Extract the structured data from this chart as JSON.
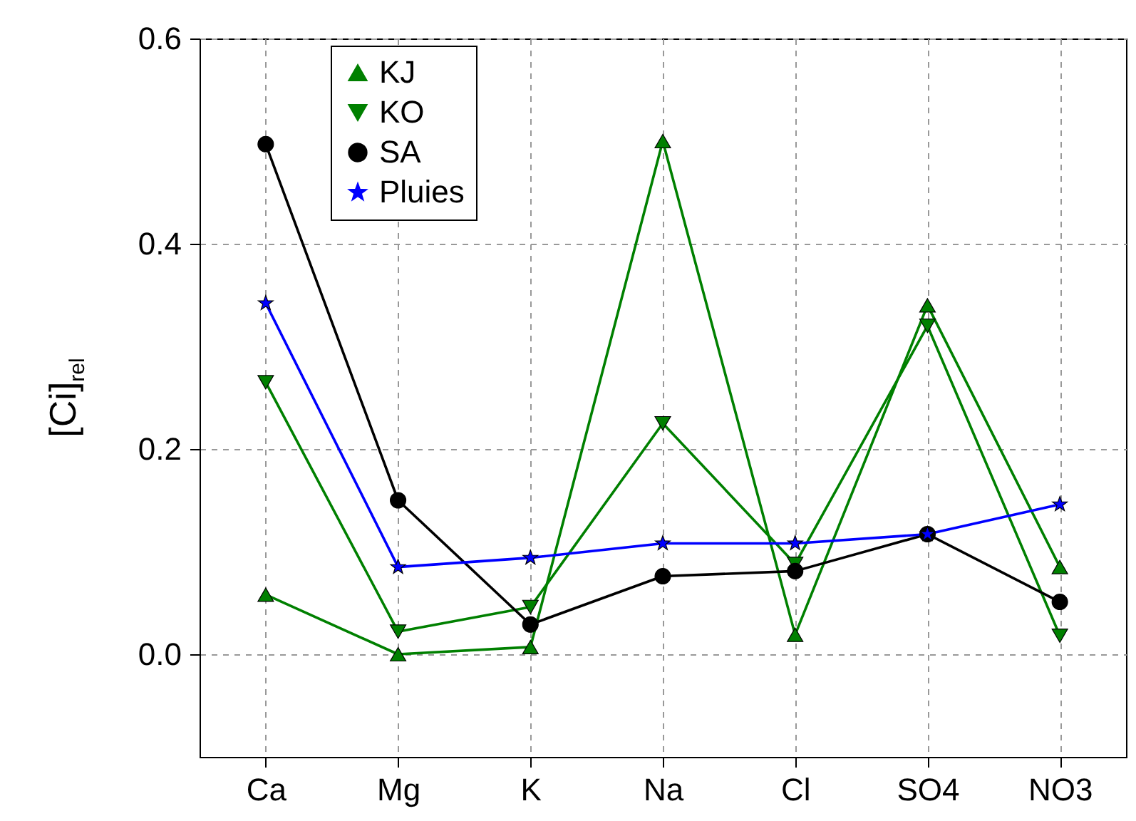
{
  "chart_data": {
    "type": "line",
    "ylabel": "[Ci]$_{rel}$",
    "categories": [
      "Ca",
      "Mg",
      "K",
      "Na",
      "Cl",
      "SO4",
      "NO3"
    ],
    "series": [
      {
        "name": "KJ",
        "color": "#008000",
        "marker": "triangle",
        "values": [
          0.058,
          0.0,
          0.007,
          0.5,
          0.019,
          0.34,
          0.085
        ]
      },
      {
        "name": "KO",
        "color": "#008000",
        "marker": "triangle-down",
        "values": [
          0.265,
          0.022,
          0.046,
          0.225,
          0.088,
          0.32,
          0.018
        ]
      },
      {
        "name": "SA",
        "color": "#000000",
        "marker": "circle",
        "values": [
          0.497,
          0.15,
          0.029,
          0.076,
          0.081,
          0.117,
          0.051
        ]
      },
      {
        "name": "Pluies",
        "color": "#0000ff",
        "marker": "star",
        "values": [
          0.342,
          0.085,
          0.094,
          0.108,
          0.108,
          0.117,
          0.146
        ]
      }
    ],
    "ylim": [
      -0.1,
      0.6
    ],
    "yticks": [
      {
        "value": 0,
        "label": "0.0"
      },
      0.2,
      0.4,
      0.6
    ],
    "grid": true,
    "legend": "top left"
  }
}
